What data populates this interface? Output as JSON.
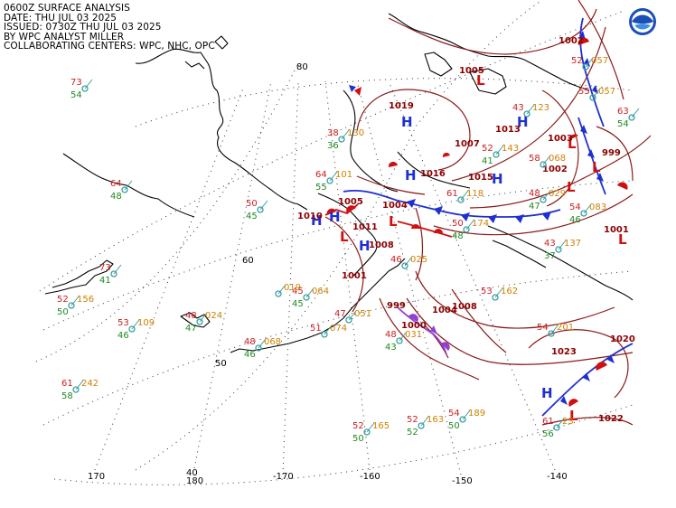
{
  "header": {
    "line1": "0600Z SURFACE ANALYSIS",
    "line2": "DATE: THU JUL 03 2025",
    "line3": "ISSUED: 0730Z THU JUL 03 2025",
    "line4": "BY WPC ANALYST MILLER",
    "line5": "COLLABORATING CENTERS: WPC, NHC, OPC"
  },
  "colors": {
    "isobar": "#8b1a1a",
    "high": "#1f2fd0",
    "low": "#d01010",
    "temperature": "#cc2020",
    "dewpoint": "#1f8a1f",
    "pressure": "#d08000",
    "station": "#3aa0a0"
  },
  "logo": {
    "icon": "noaa-logo-icon"
  },
  "graticule": {
    "lat_labels": [
      "80",
      "60",
      "50",
      "40"
    ],
    "lon_labels": [
      "170",
      "180",
      "-170",
      "-160",
      "-150",
      "-140"
    ]
  },
  "pressure_centers": [
    {
      "type": "H",
      "value": "1019"
    },
    {
      "type": "H",
      "value": "1016"
    },
    {
      "type": "H",
      "value": ""
    },
    {
      "type": "H",
      "value": "1013"
    },
    {
      "type": "H",
      "value": ""
    },
    {
      "type": "H",
      "value": "1011"
    },
    {
      "type": "H",
      "value": "1008"
    },
    {
      "type": "H",
      "value": "1023"
    },
    {
      "type": "H",
      "value": ""
    },
    {
      "type": "L",
      "value": "1005"
    },
    {
      "type": "L",
      "value": "1002"
    },
    {
      "type": "L",
      "value": "1003"
    },
    {
      "type": "L",
      "value": "999"
    },
    {
      "type": "L",
      "value": "1004"
    },
    {
      "type": "L",
      "value": "1005"
    },
    {
      "type": "L",
      "value": "1001"
    },
    {
      "type": "L",
      "value": "999"
    },
    {
      "type": "L",
      "value": ""
    },
    {
      "type": "L",
      "value": ""
    }
  ],
  "isobar_labels": [
    "1010",
    "1015",
    "1002",
    "1004",
    "1008",
    "1020",
    "1022",
    "1000",
    "1001",
    "1007"
  ],
  "stations": [
    {
      "t": "73",
      "d": "54",
      "p": ""
    },
    {
      "t": "64",
      "d": "48",
      "p": ""
    },
    {
      "t": "73",
      "d": "41",
      "p": ""
    },
    {
      "t": "52",
      "d": "50",
      "p": "156"
    },
    {
      "t": "53",
      "d": "46",
      "p": "109"
    },
    {
      "t": "48",
      "d": "47",
      "p": "024"
    },
    {
      "t": "61",
      "d": "58",
      "p": "242"
    },
    {
      "t": "50",
      "d": "45",
      "p": ""
    },
    {
      "t": "38",
      "d": "36",
      "p": "130"
    },
    {
      "t": "64",
      "d": "55",
      "p": "101"
    },
    {
      "t": "45",
      "d": "45",
      "p": "064"
    },
    {
      "t": "",
      "d": "",
      "p": "019"
    },
    {
      "t": "48",
      "d": "46",
      "p": "068"
    },
    {
      "t": "51",
      "d": "",
      "p": "074"
    },
    {
      "t": "47",
      "d": "",
      "p": "051"
    },
    {
      "t": "48",
      "d": "43",
      "p": "031"
    },
    {
      "t": "52",
      "d": "50",
      "p": "165"
    },
    {
      "t": "52",
      "d": "52",
      "p": "163"
    },
    {
      "t": "54",
      "d": "50",
      "p": "189"
    },
    {
      "t": "61",
      "d": "56",
      "p": "23"
    },
    {
      "t": "54",
      "d": "",
      "p": "201"
    },
    {
      "t": "53",
      "d": "",
      "p": "162"
    },
    {
      "t": "50",
      "d": "48",
      "p": "174"
    },
    {
      "t": "61",
      "d": "",
      "p": "118"
    },
    {
      "t": "52",
      "d": "41",
      "p": "143"
    },
    {
      "t": "43",
      "d": "",
      "p": "123"
    },
    {
      "t": "48",
      "d": "47",
      "p": "029"
    },
    {
      "t": "54",
      "d": "46",
      "p": "083"
    },
    {
      "t": "55",
      "d": "",
      "p": "057"
    },
    {
      "t": "58",
      "d": "",
      "p": "068"
    },
    {
      "t": "43",
      "d": "37",
      "p": "137"
    },
    {
      "t": "63",
      "d": "54",
      "p": ""
    },
    {
      "t": "52",
      "d": "",
      "p": "057"
    },
    {
      "t": "46",
      "d": "",
      "p": "025"
    }
  ],
  "axis_extra": [
    "180"
  ]
}
